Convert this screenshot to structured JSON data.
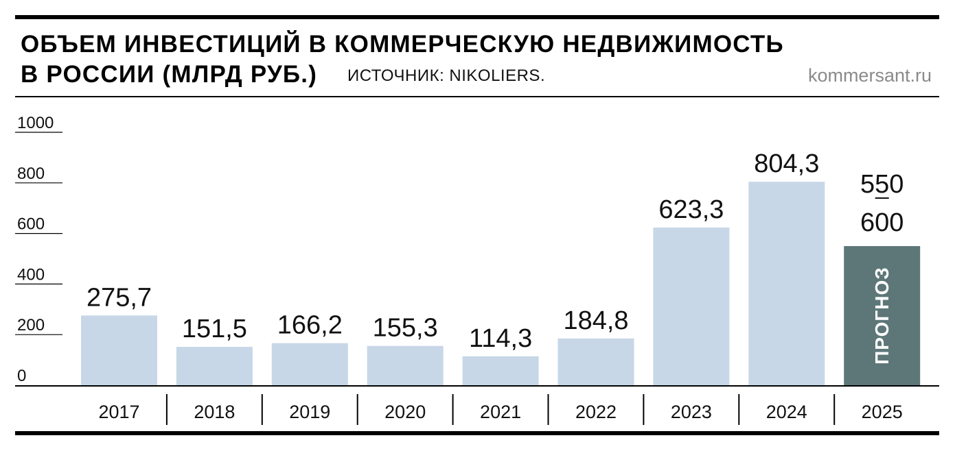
{
  "header": {
    "title_line1": "ОБЪЕМ ИНВЕСТИЦИЙ В КОММЕРЧЕСКУЮ НЕДВИЖИМОСТЬ",
    "title_line2": "В РОССИИ (МЛРД РУБ.)",
    "source": "ИСТОЧНИК: NIKOLIERS.",
    "site": "kommersant.ru"
  },
  "colors": {
    "bar": "#c7d7e7",
    "forecast_bar": "#5d7779",
    "forecast_text": "#ffffff",
    "axis": "#000000"
  },
  "chart_data": {
    "type": "bar",
    "title": "ОБЪЕМ ИНВЕСТИЦИЙ В КОММЕРЧЕСКУЮ НЕДВИЖИМОСТЬ В РОССИИ (МЛРД РУБ.)",
    "categories": [
      "2017",
      "2018",
      "2019",
      "2020",
      "2021",
      "2022",
      "2023",
      "2024",
      "2025"
    ],
    "values": [
      275.7,
      151.5,
      166.2,
      155.3,
      114.3,
      184.8,
      623.3,
      804.3,
      550
    ],
    "labels": [
      "275,7",
      "151,5",
      "166,2",
      "155,3",
      "114,3",
      "184,8",
      "623,3",
      "804,3"
    ],
    "forecast": {
      "category": "2025",
      "low": 550,
      "high": 600,
      "label_low": "550",
      "label_high": "600",
      "tag": "ПРОГНОЗ"
    },
    "yticks": [
      {
        "value": 0,
        "label": "0"
      },
      {
        "value": 200,
        "label": "200"
      },
      {
        "value": 400,
        "label": "400"
      },
      {
        "value": 600,
        "label": "600"
      },
      {
        "value": 800,
        "label": "800"
      },
      {
        "value": 1000,
        "label": "1000"
      }
    ],
    "ylim": [
      0,
      1000
    ],
    "grid": false,
    "legend": "none"
  }
}
